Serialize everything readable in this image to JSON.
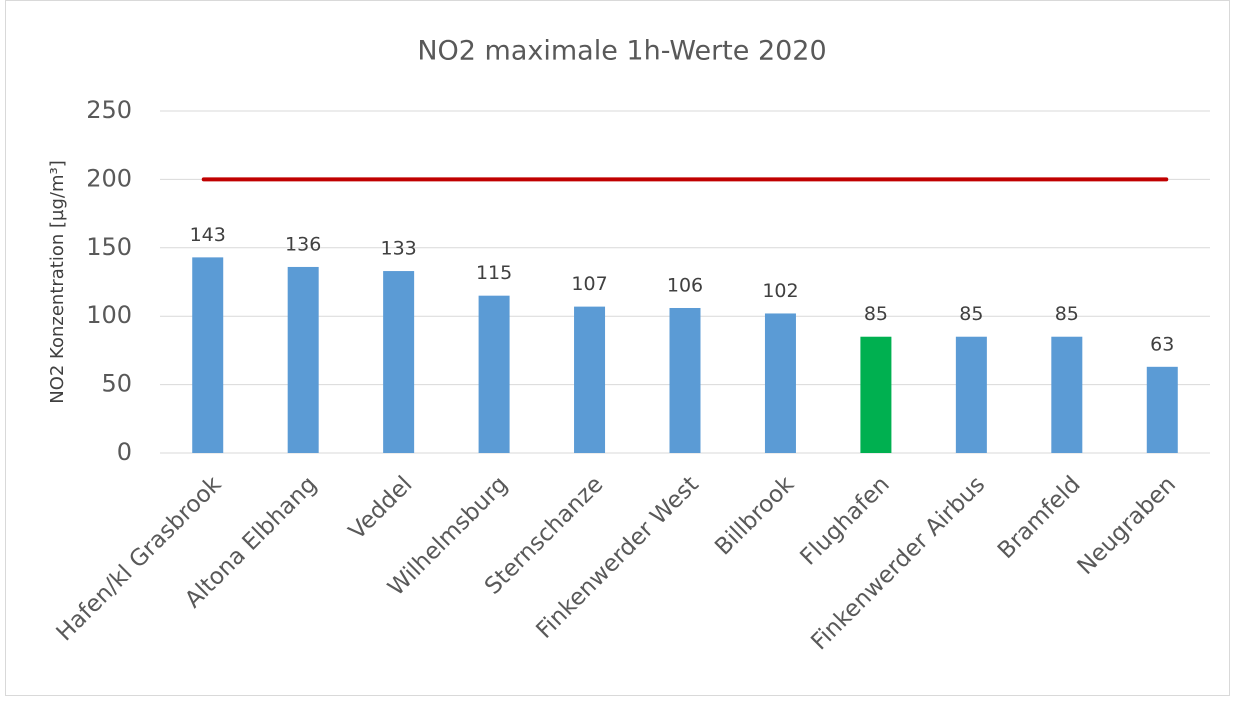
{
  "chart_data": {
    "type": "bar",
    "title": "NO2 maximale 1h-Werte 2020",
    "y_label": "NO2 Konzentration [µg/m³]",
    "categories": [
      "Hafen/kl Grasbrook",
      "Altona Elbhang",
      "Veddel",
      "Wilhelmsburg",
      "Sternschanze",
      "Finkenwerder West",
      "Billbrook",
      "Flughafen",
      "Finkenwerder Airbus",
      "Bramfeld",
      "Neugraben"
    ],
    "values": [
      143,
      136,
      133,
      115,
      107,
      106,
      102,
      85,
      85,
      85,
      63
    ],
    "colors": [
      "#5b9bd5",
      "#5b9bd5",
      "#5b9bd5",
      "#5b9bd5",
      "#5b9bd5",
      "#5b9bd5",
      "#5b9bd5",
      "#00b050",
      "#5b9bd5",
      "#5b9bd5",
      "#5b9bd5"
    ],
    "reference_line": {
      "value": 200,
      "color": "#c00000"
    },
    "ylim": [
      0,
      250
    ],
    "yticks": [
      0,
      50,
      100,
      150,
      200,
      250
    ],
    "grid": true
  }
}
